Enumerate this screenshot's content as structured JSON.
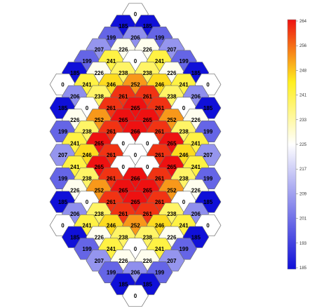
{
  "chart_data": {
    "type": "heatmap",
    "layout": "hexagonal assembly map",
    "color_scale": {
      "min": 185,
      "max": 264,
      "colors": [
        "#1010d8",
        "#ffffff",
        "#ffef1f",
        "#ee1111"
      ],
      "ticks": [
        "264",
        "256",
        "248",
        "241",
        "233",
        "225",
        "217",
        "209",
        "201",
        "193",
        "185"
      ]
    },
    "rows": [
      [
        "0"
      ],
      [
        "185",
        "185"
      ],
      [
        "199",
        "206",
        "199"
      ],
      [
        "207",
        "226",
        "226",
        "207"
      ],
      [
        "199",
        "241",
        "0",
        "241",
        "199"
      ],
      [
        "185",
        "226",
        "238",
        "238",
        "226",
        "185"
      ],
      [
        "0",
        "241",
        "246",
        "252",
        "246",
        "241",
        "0"
      ],
      [
        "206",
        "238",
        "261",
        "261",
        "238",
        "206"
      ],
      [
        "185",
        "0",
        "261",
        "265",
        "261",
        "0",
        "185"
      ],
      [
        "226",
        "252",
        "265",
        "265",
        "252",
        "226"
      ],
      [
        "199",
        "238",
        "261",
        "266",
        "261",
        "238",
        "199"
      ],
      [
        "241",
        "265",
        "0",
        "0",
        "265",
        "241"
      ],
      [
        "207",
        "246",
        "261",
        "0",
        "261",
        "246",
        "207"
      ],
      [
        "241",
        "265",
        "0",
        "0",
        "265",
        "241"
      ],
      [
        "199",
        "238",
        "261",
        "266",
        "261",
        "238",
        "199"
      ],
      [
        "226",
        "252",
        "265",
        "265",
        "252",
        "226"
      ],
      [
        "185",
        "0",
        "261",
        "265",
        "261",
        "0",
        "185"
      ],
      [
        "206",
        "238",
        "261",
        "261",
        "238",
        "206"
      ],
      [
        "0",
        "241",
        "246",
        "252",
        "246",
        "241",
        "0"
      ],
      [
        "185",
        "226",
        "238",
        "238",
        "226",
        "185"
      ],
      [
        "199",
        "241",
        "0",
        "241",
        "199"
      ],
      [
        "207",
        "226",
        "226",
        "207"
      ],
      [
        "199",
        "206",
        "199"
      ],
      [
        "185",
        "185"
      ],
      [
        "0"
      ]
    ]
  }
}
